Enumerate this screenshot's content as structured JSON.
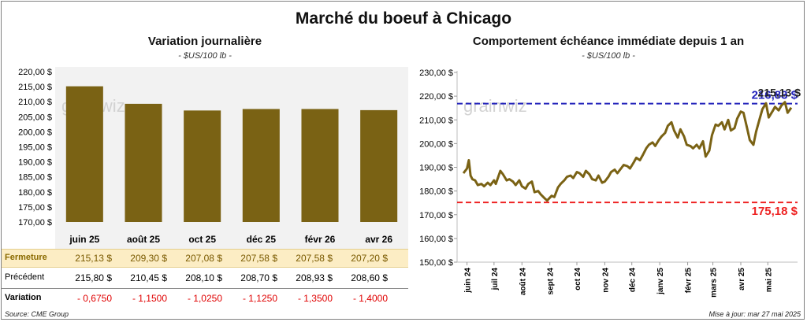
{
  "title": "Marché du boeuf à Chicago",
  "left": {
    "subtitle": "Variation journalière",
    "unit": "- $US/100 lb -",
    "watermark": "grainwiz"
  },
  "right": {
    "subtitle": "Comportement échéance immédiate depuis 1 an",
    "unit": "- $US/100 lb -",
    "watermark": "grainwiz"
  },
  "table": {
    "rows": [
      {
        "label": "Fermeture",
        "values": [
          "215,13 $",
          "209,30 $",
          "207,08 $",
          "207,58 $",
          "207,58 $",
          "207,20 $"
        ]
      },
      {
        "label": "Précédent",
        "values": [
          "215,80 $",
          "210,45 $",
          "208,10 $",
          "208,70 $",
          "208,93 $",
          "208,60 $"
        ]
      },
      {
        "label": "Variation",
        "values": [
          "- 0,6750",
          "- 1,1500",
          "- 1,0250",
          "- 1,1250",
          "- 1,3500",
          "- 1,4000"
        ]
      }
    ]
  },
  "footer": {
    "source": "Source: CME Group",
    "updated": "Mise à jour: mar 27 mai 2025"
  },
  "colors": {
    "bar": "#7a6214",
    "line": "#7a6214",
    "max_line": "#2222bb",
    "min_line": "#ee2222",
    "close_row": "#fcedc4"
  },
  "chart_data": [
    {
      "type": "bar",
      "title": "Variation journalière",
      "categories": [
        "juin 25",
        "août 25",
        "oct 25",
        "déc 25",
        "févr 26",
        "avr 26"
      ],
      "values": [
        215.13,
        209.3,
        207.08,
        207.58,
        207.58,
        207.2
      ],
      "ylim": [
        170,
        220
      ],
      "yticks": [
        "170,00 $",
        "175,00 $",
        "180,00 $",
        "185,00 $",
        "190,00 $",
        "195,00 $",
        "200,00 $",
        "205,00 $",
        "210,00 $",
        "215,00 $",
        "220,00 $"
      ],
      "grid": false
    },
    {
      "type": "line",
      "title": "Comportement échéance immédiate depuis 1 an",
      "x_start": "2024-05-28",
      "x_end": "2025-05-27",
      "xticks": [
        "juin 24",
        "juil 24",
        "août 24",
        "sept 24",
        "oct 24",
        "nov 24",
        "déc 24",
        "janv 25",
        "févr 25",
        "mars 25",
        "avr 25",
        "mai 25"
      ],
      "xtick_dates": [
        "2024-06-01",
        "2024-07-01",
        "2024-08-01",
        "2024-09-01",
        "2024-10-01",
        "2024-11-01",
        "2024-12-01",
        "2025-01-01",
        "2025-02-01",
        "2025-03-01",
        "2025-04-01",
        "2025-05-01"
      ],
      "ylim": [
        150,
        230
      ],
      "yticks": [
        "150,00 $",
        "160,00 $",
        "170,00 $",
        "180,00 $",
        "190,00 $",
        "200,00 $",
        "210,00 $",
        "220,00 $",
        "230,00 $"
      ],
      "series": [
        {
          "x": [
            "2024-05-28",
            "2024-06-01",
            "2024-06-03",
            "2024-06-05",
            "2024-06-07",
            "2024-06-10",
            "2024-06-13",
            "2024-06-17",
            "2024-06-20",
            "2024-06-24",
            "2024-06-27",
            "2024-07-01",
            "2024-07-03",
            "2024-07-08",
            "2024-07-11",
            "2024-07-15",
            "2024-07-18",
            "2024-07-22",
            "2024-07-25",
            "2024-07-29",
            "2024-08-01",
            "2024-08-05",
            "2024-08-08",
            "2024-08-12",
            "2024-08-15",
            "2024-08-19",
            "2024-08-22",
            "2024-08-26",
            "2024-08-29",
            "2024-09-03",
            "2024-09-06",
            "2024-09-10",
            "2024-09-13",
            "2024-09-17",
            "2024-09-20",
            "2024-09-24",
            "2024-09-27",
            "2024-10-01",
            "2024-10-04",
            "2024-10-08",
            "2024-10-11",
            "2024-10-15",
            "2024-10-18",
            "2024-10-22",
            "2024-10-25",
            "2024-10-29",
            "2024-11-01",
            "2024-11-05",
            "2024-11-08",
            "2024-11-12",
            "2024-11-15",
            "2024-11-19",
            "2024-11-22",
            "2024-11-26",
            "2024-11-29",
            "2024-12-03",
            "2024-12-06",
            "2024-12-10",
            "2024-12-13",
            "2024-12-17",
            "2024-12-20",
            "2024-12-24",
            "2024-12-27",
            "2024-12-31",
            "2025-01-03",
            "2025-01-07",
            "2025-01-10",
            "2025-01-14",
            "2025-01-17",
            "2025-01-21",
            "2025-01-24",
            "2025-01-28",
            "2025-01-31",
            "2025-02-04",
            "2025-02-07",
            "2025-02-11",
            "2025-02-14",
            "2025-02-18",
            "2025-02-21",
            "2025-02-25",
            "2025-02-28",
            "2025-03-04",
            "2025-03-07",
            "2025-03-11",
            "2025-03-14",
            "2025-03-18",
            "2025-03-21",
            "2025-03-25",
            "2025-03-28",
            "2025-04-01",
            "2025-04-04",
            "2025-04-08",
            "2025-04-11",
            "2025-04-15",
            "2025-04-18",
            "2025-04-22",
            "2025-04-25",
            "2025-04-29",
            "2025-05-02",
            "2025-05-06",
            "2025-05-09",
            "2025-05-13",
            "2025-05-16",
            "2025-05-20",
            "2025-05-23",
            "2025-05-27"
          ],
          "y": [
            187.5,
            189.5,
            193.0,
            186.5,
            185.0,
            184.5,
            182.5,
            183.0,
            182.0,
            183.5,
            182.5,
            184.5,
            183.0,
            188.5,
            187.0,
            184.5,
            185.0,
            184.0,
            182.5,
            184.5,
            182.0,
            181.0,
            183.0,
            184.0,
            179.5,
            180.0,
            178.5,
            177.0,
            176.0,
            178.0,
            177.5,
            181.5,
            183.0,
            184.5,
            186.0,
            186.5,
            185.5,
            188.0,
            187.5,
            186.0,
            188.5,
            187.0,
            185.0,
            184.5,
            186.5,
            183.5,
            184.0,
            186.0,
            188.0,
            189.0,
            187.5,
            189.5,
            191.0,
            190.5,
            189.5,
            192.0,
            194.0,
            193.0,
            195.0,
            198.0,
            199.5,
            200.5,
            199.0,
            201.5,
            203.0,
            204.5,
            207.5,
            209.0,
            205.5,
            202.5,
            206.0,
            203.0,
            199.5,
            199.0,
            198.0,
            199.5,
            198.0,
            201.0,
            194.5,
            197.0,
            203.5,
            208.0,
            207.5,
            209.0,
            206.0,
            210.0,
            205.5,
            206.5,
            210.5,
            213.5,
            213.0,
            206.5,
            201.5,
            199.5,
            205.0,
            210.5,
            214.5,
            217.0,
            211.0,
            213.5,
            215.5,
            214.0,
            216.0,
            217.5,
            213.0,
            215.13
          ]
        }
      ],
      "reference_lines": [
        {
          "value": 216.83,
          "label": "216,83 $",
          "color": "#2222bb"
        },
        {
          "value": 175.18,
          "label": "175,18 $",
          "color": "#ee2222"
        }
      ],
      "last_label": "215,13 $",
      "grid": false
    }
  ]
}
